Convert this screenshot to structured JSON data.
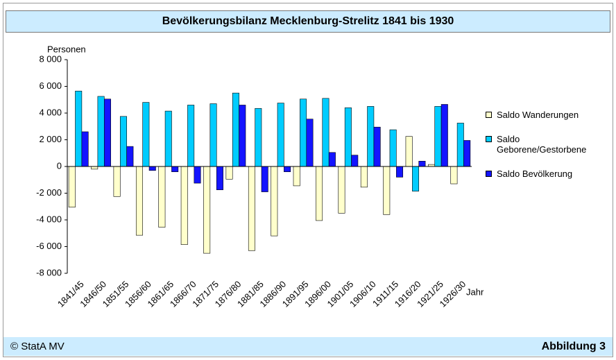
{
  "chart_data": {
    "type": "bar",
    "title": "Bevölkerungsbilanz Mecklenburg-Strelitz 1841 bis 1930",
    "y_label": "Personen",
    "x_label": "Jahr",
    "categories": [
      "1841/45",
      "1846/50",
      "1851/55",
      "1856/60",
      "1861/65",
      "1866/70",
      "1871/75",
      "1876/80",
      "1881/85",
      "1886/90",
      "1891/95",
      "1896/00",
      "1901/05",
      "1906/10",
      "1911/15",
      "1916/20",
      "1921/25",
      "1926/30"
    ],
    "series": [
      {
        "name": "Saldo Wanderungen",
        "color": "#ffffcc",
        "values": [
          -3050,
          -200,
          -2250,
          -5150,
          -4550,
          -5850,
          -6500,
          -950,
          -6300,
          -5200,
          -1450,
          -4050,
          -3500,
          -1550,
          -3600,
          2250,
          150,
          -1300
        ]
      },
      {
        "name": "Saldo Geborene/Gestorbene",
        "color": "#00ccff",
        "values": [
          5650,
          5250,
          3750,
          4800,
          4150,
          4600,
          4700,
          5500,
          4350,
          4750,
          5050,
          5100,
          4400,
          4500,
          2750,
          -1850,
          4500,
          3250
        ]
      },
      {
        "name": "Saldo Bevölkerung",
        "color": "#1414ff",
        "values": [
          2600,
          5050,
          1500,
          -300,
          -400,
          -1250,
          -1750,
          4600,
          -1900,
          -400,
          3550,
          1050,
          850,
          2950,
          -800,
          400,
          4650,
          1950
        ]
      }
    ],
    "ylim": [
      -8000,
      8000
    ],
    "yticks": [
      {
        "value": -8000,
        "label": "-8 000"
      },
      {
        "value": -6000,
        "label": "-6 000"
      },
      {
        "value": -4000,
        "label": "-4 000"
      },
      {
        "value": -2000,
        "label": "-2 000"
      },
      0,
      {
        "value": 2000,
        "label": "2 000"
      },
      {
        "value": 4000,
        "label": "4 000"
      },
      {
        "value": 6000,
        "label": "6 000"
      },
      {
        "value": 8000,
        "label": "8 000"
      }
    ],
    "grid": false,
    "legend": "right"
  },
  "footer": {
    "source": "© StatA MV",
    "figure": "Abbildung 3"
  }
}
